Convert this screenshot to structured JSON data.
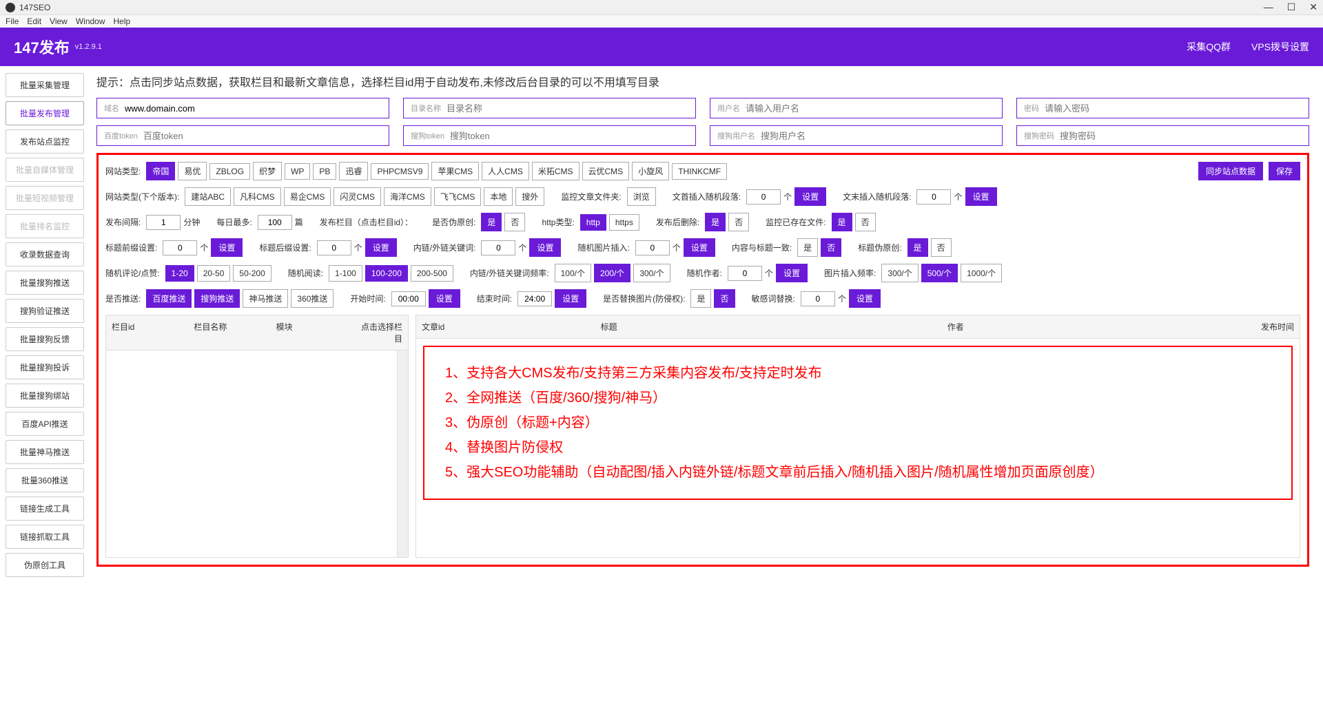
{
  "window": {
    "title": "147SEO"
  },
  "menubar": [
    "File",
    "Edit",
    "View",
    "Window",
    "Help"
  ],
  "header": {
    "brand": "147发布",
    "version": "v1.2.9.1",
    "link1": "采集QQ群",
    "link2": "VPS拨号设置"
  },
  "sidebar": [
    {
      "label": "批量采集管理",
      "cls": ""
    },
    {
      "label": "批量发布管理",
      "cls": "active"
    },
    {
      "label": "发布站点监控",
      "cls": ""
    },
    {
      "label": "批量自媒体管理",
      "cls": "disabled"
    },
    {
      "label": "批量短视频管理",
      "cls": "disabled"
    },
    {
      "label": "批量排名监控",
      "cls": "disabled"
    },
    {
      "label": "收录数据查询",
      "cls": ""
    },
    {
      "label": "批量搜狗推送",
      "cls": ""
    },
    {
      "label": "搜狗验证推送",
      "cls": ""
    },
    {
      "label": "批量搜狗反馈",
      "cls": ""
    },
    {
      "label": "批量搜狗投诉",
      "cls": ""
    },
    {
      "label": "批量搜狗绑站",
      "cls": ""
    },
    {
      "label": "百度API推送",
      "cls": ""
    },
    {
      "label": "批量神马推送",
      "cls": ""
    },
    {
      "label": "批量360推送",
      "cls": ""
    },
    {
      "label": "链接生成工具",
      "cls": ""
    },
    {
      "label": "链接抓取工具",
      "cls": ""
    },
    {
      "label": "伪原创工具",
      "cls": ""
    }
  ],
  "hint": "提示：点击同步站点数据，获取栏目和最新文章信息，选择栏目id用于自动发布,未修改后台目录的可以不用填写目录",
  "inputs1": [
    {
      "lbl": "域名",
      "val": "www.domain.com",
      "ph": ""
    },
    {
      "lbl": "目录名称",
      "val": "",
      "ph": "目录名称"
    },
    {
      "lbl": "用户名",
      "val": "",
      "ph": "请输入用户名"
    },
    {
      "lbl": "密码",
      "val": "",
      "ph": "请输入密码"
    }
  ],
  "inputs2": [
    {
      "lbl": "百度token",
      "val": "",
      "ph": "百度token"
    },
    {
      "lbl": "搜狗token",
      "val": "",
      "ph": "搜狗token"
    },
    {
      "lbl": "搜狗用户名",
      "val": "",
      "ph": "搜狗用户名"
    },
    {
      "lbl": "搜狗密码",
      "val": "",
      "ph": "搜狗密码"
    }
  ],
  "row1": {
    "lbl": "网站类型:",
    "opts": [
      "帝国",
      "易优",
      "ZBLOG",
      "织梦",
      "WP",
      "PB",
      "迅睿",
      "PHPCMSV9",
      "苹果CMS",
      "人人CMS",
      "米拓CMS",
      "云优CMS",
      "小旋风",
      "THINKCMF"
    ],
    "sel": 0,
    "btn1": "同步站点数据",
    "btn2": "保存"
  },
  "row2": {
    "lbl": "网站类型(下个版本):",
    "opts": [
      "建站ABC",
      "凡科CMS",
      "易企CMS",
      "闪灵CMS",
      "海洋CMS",
      "飞飞CMS",
      "本地",
      "搜外"
    ],
    "lbl2": "监控文章文件夹:",
    "btn_browse": "浏览",
    "lbl3": "文首插入随机段落:",
    "v3": "0",
    "u3": "个",
    "btn3": "设置",
    "lbl4": "文末插入随机段落:",
    "v4": "0",
    "u4": "个",
    "btn4": "设置"
  },
  "row3": {
    "lbl1": "发布间隔:",
    "v1": "1",
    "u1": "分钟",
    "lbl2": "每日最多:",
    "v2": "100",
    "u2": "篇",
    "lbl3": "发布栏目（点击栏目id）：",
    "lbl4": "是否伪原创:",
    "yes": "是",
    "no": "否",
    "lbl5": "http类型:",
    "http": "http",
    "https": "https",
    "lbl6": "发布后删除:",
    "lbl7": "监控已存在文件:"
  },
  "row4": {
    "lbl1": "标题前缀设置:",
    "v1": "0",
    "u": "个",
    "set": "设置",
    "lbl2": "标题后缀设置:",
    "v2": "0",
    "lbl3": "内链/外链关键词:",
    "v3": "0",
    "lbl4": "随机图片插入:",
    "v4": "0",
    "lbl5": "内容与标题一致:",
    "yes": "是",
    "no": "否",
    "lbl6": "标题伪原创:"
  },
  "row5": {
    "lbl1": "随机评论/点赞:",
    "o1": [
      "1-20",
      "20-50",
      "50-200"
    ],
    "s1": 0,
    "lbl2": "随机阅读:",
    "o2": [
      "1-100",
      "100-200",
      "200-500"
    ],
    "s2": 1,
    "lbl3": "内链/外链关键词频率:",
    "o3": [
      "100/个",
      "200/个",
      "300/个"
    ],
    "s3": 1,
    "lbl4": "随机作者:",
    "v4": "0",
    "u4": "个",
    "set": "设置",
    "lbl5": "图片插入频率:",
    "o5": [
      "300/个",
      "500/个",
      "1000/个"
    ],
    "s5": 1
  },
  "row6": {
    "lbl1": "是否推送:",
    "o1": [
      "百度推送",
      "搜狗推送",
      "神马推送",
      "360推送"
    ],
    "lbl2": "开始时间:",
    "v2": "00:00",
    "set": "设置",
    "lbl3": "结束时间:",
    "v3": "24:00",
    "lbl4": "是否替换图片(防侵权):",
    "yes": "是",
    "no": "否",
    "lbl5": "敏感词替换:",
    "v5": "0",
    "u5": "个"
  },
  "table_left": [
    "栏目id",
    "栏目名称",
    "模块",
    "点击选择栏目"
  ],
  "table_right": [
    "文章id",
    "标题",
    "作者",
    "发布时间"
  ],
  "features": [
    "1、支持各大CMS发布/支持第三方采集内容发布/支持定时发布",
    "2、全网推送（百度/360/搜狗/神马）",
    "3、伪原创（标题+内容）",
    "4、替换图片防侵权",
    "5、强大SEO功能辅助（自动配图/插入内链外链/标题文章前后插入/随机插入图片/随机属性增加页面原创度）"
  ]
}
